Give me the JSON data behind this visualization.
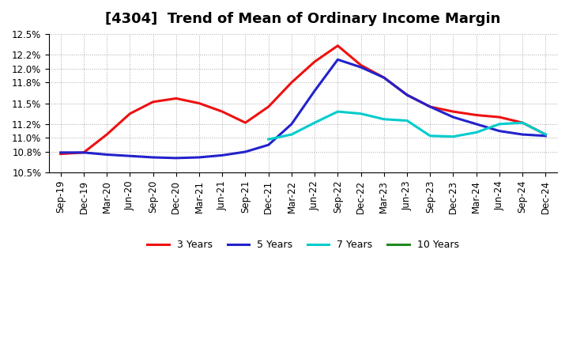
{
  "title": "[4304]  Trend of Mean of Ordinary Income Margin",
  "ylim": [
    10.5,
    12.5
  ],
  "yticks": [
    10.5,
    10.8,
    11.0,
    11.2,
    11.5,
    11.8,
    12.0,
    12.2,
    12.5
  ],
  "ytick_labels": [
    "10.5%",
    "10.8%",
    "11.0%",
    "11.2%",
    "11.5%",
    "11.8%",
    "12.0%",
    "12.2%",
    "12.5%"
  ],
  "background_color": "#ffffff",
  "grid_color": "#aaaaaa",
  "series": {
    "3yr": {
      "color": "#ee1111",
      "label": "3 Years",
      "x": [
        "Sep-19",
        "Dec-19",
        "Mar-20",
        "Jun-20",
        "Sep-20",
        "Dec-20",
        "Mar-21",
        "Jun-21",
        "Sep-21",
        "Dec-21",
        "Mar-22",
        "Jun-22",
        "Sep-22",
        "Dec-22",
        "Mar-23",
        "Jun-23",
        "Sep-23",
        "Dec-23",
        "Mar-24",
        "Jun-24",
        "Sep-24",
        "Dec-24"
      ],
      "y": [
        10.77,
        10.79,
        11.05,
        11.35,
        11.52,
        11.57,
        11.5,
        11.38,
        11.22,
        11.45,
        11.8,
        12.1,
        12.33,
        12.05,
        11.87,
        11.62,
        11.45,
        11.38,
        11.33,
        11.3,
        11.22,
        11.05
      ]
    },
    "5yr": {
      "color": "#2222cc",
      "label": "5 Years",
      "x": [
        "Sep-19",
        "Dec-19",
        "Mar-20",
        "Jun-20",
        "Sep-20",
        "Dec-20",
        "Mar-21",
        "Jun-21",
        "Sep-21",
        "Dec-21",
        "Mar-22",
        "Jun-22",
        "Sep-22",
        "Dec-22",
        "Mar-23",
        "Jun-23",
        "Sep-23",
        "Dec-23",
        "Mar-24",
        "Jun-24",
        "Sep-24",
        "Dec-24"
      ],
      "y": [
        10.79,
        10.79,
        10.76,
        10.74,
        10.72,
        10.71,
        10.72,
        10.75,
        10.8,
        10.9,
        11.2,
        11.68,
        12.13,
        12.02,
        11.87,
        11.62,
        11.45,
        11.3,
        11.2,
        11.1,
        11.05,
        11.03
      ]
    },
    "7yr": {
      "color": "#00cccc",
      "label": "7 Years",
      "x": [
        "Dec-21",
        "Mar-22",
        "Jun-22",
        "Sep-22",
        "Dec-22",
        "Mar-23",
        "Jun-23",
        "Sep-23",
        "Dec-23",
        "Mar-24",
        "Jun-24",
        "Sep-24",
        "Dec-24"
      ],
      "y": [
        10.98,
        11.05,
        11.22,
        11.38,
        11.35,
        11.27,
        11.25,
        11.03,
        11.02,
        11.08,
        11.2,
        11.22,
        11.05
      ]
    },
    "10yr": {
      "color": "#228822",
      "label": "10 Years",
      "x": [],
      "y": []
    }
  },
  "xtick_labels": [
    "Sep-19",
    "Dec-19",
    "Mar-20",
    "Jun-20",
    "Sep-20",
    "Dec-20",
    "Mar-21",
    "Jun-21",
    "Sep-21",
    "Dec-21",
    "Mar-22",
    "Jun-22",
    "Sep-22",
    "Dec-22",
    "Mar-23",
    "Jun-23",
    "Sep-23",
    "Dec-23",
    "Mar-24",
    "Jun-24",
    "Sep-24",
    "Dec-24"
  ],
  "title_fontsize": 13,
  "tick_fontsize": 8.5,
  "legend_fontsize": 9
}
